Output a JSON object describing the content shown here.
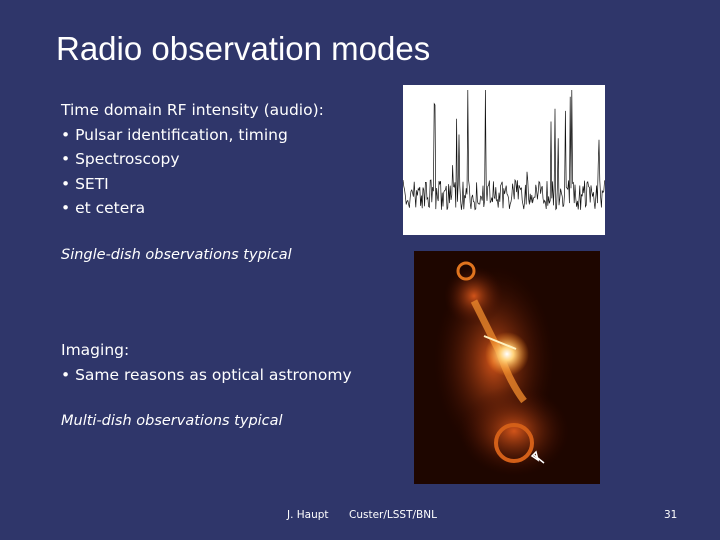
{
  "slide": {
    "title": "Radio observation modes",
    "time_domain": {
      "heading": "Time domain RF intensity (audio):",
      "bullets": [
        "• Pulsar identification, timing",
        "• Spectroscopy",
        "• SETI",
        "• et cetera"
      ],
      "note": "Single-dish observations typical"
    },
    "imaging": {
      "heading": "Imaging:",
      "bullets": [
        "• Same reasons as optical astronomy"
      ],
      "note": "Multi-dish observations typical"
    },
    "footer": {
      "author": "J. Haupt",
      "affiliation": "Custer/LSST/BNL",
      "page": "31"
    }
  }
}
